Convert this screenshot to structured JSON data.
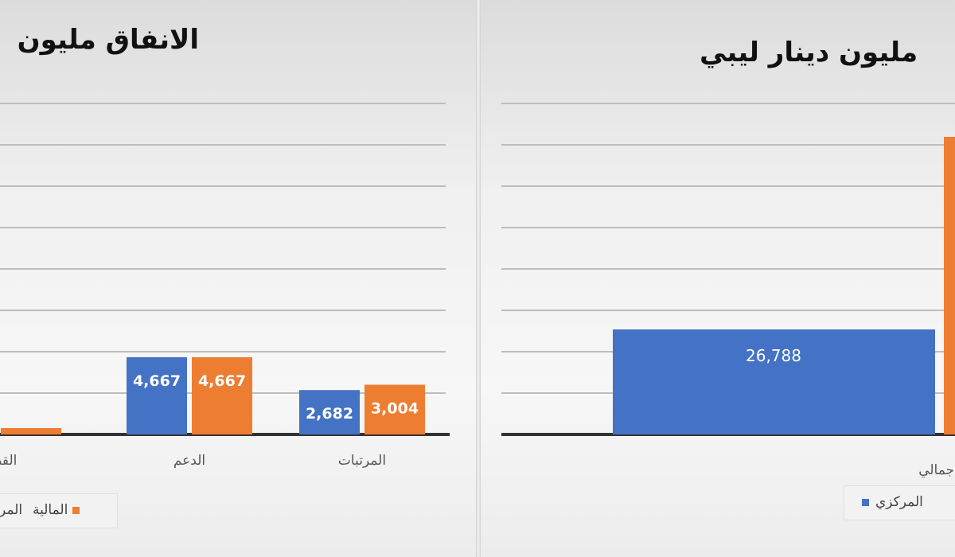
{
  "left_chart": {
    "title": "الانفاق مليون",
    "legend": [
      {
        "label": "المالية",
        "color": "#ed7d31"
      },
      {
        "label": "المر",
        "color": "#4472c4"
      }
    ]
  },
  "right_chart": {
    "title": "مليون دينار ليبي",
    "legend": [
      {
        "label": "المركزي",
        "color": "#4472c4"
      }
    ]
  },
  "chart_data": [
    {
      "type": "bar",
      "title": "الانفاق مليون",
      "categories": [
        "القطبة",
        "الدعم",
        "المرتبات"
      ],
      "series": [
        {
          "name": "المر",
          "color": "#4472c4",
          "values": [
            null,
            4667,
            2682
          ],
          "labels": [
            "",
            "4,667",
            "2,682"
          ]
        },
        {
          "name": "المالية",
          "color": "#ed7d31",
          "values": [
            null,
            4667,
            3004
          ],
          "labels": [
            "",
            "4,667",
            "3,004"
          ]
        }
      ],
      "ylim": [
        0,
        20000
      ],
      "grid": true
    },
    {
      "type": "bar",
      "title": "مليون دينار ليبي",
      "categories": [
        "إجمالي"
      ],
      "series": [
        {
          "name": "المركزي",
          "color": "#4472c4",
          "values": [
            26788
          ],
          "labels": [
            "26,788"
          ]
        },
        {
          "name": "",
          "color": "#ed7d31",
          "values": [
            null
          ],
          "labels": [
            ""
          ]
        }
      ],
      "ylim": [
        0,
        80000
      ],
      "grid": true
    }
  ]
}
